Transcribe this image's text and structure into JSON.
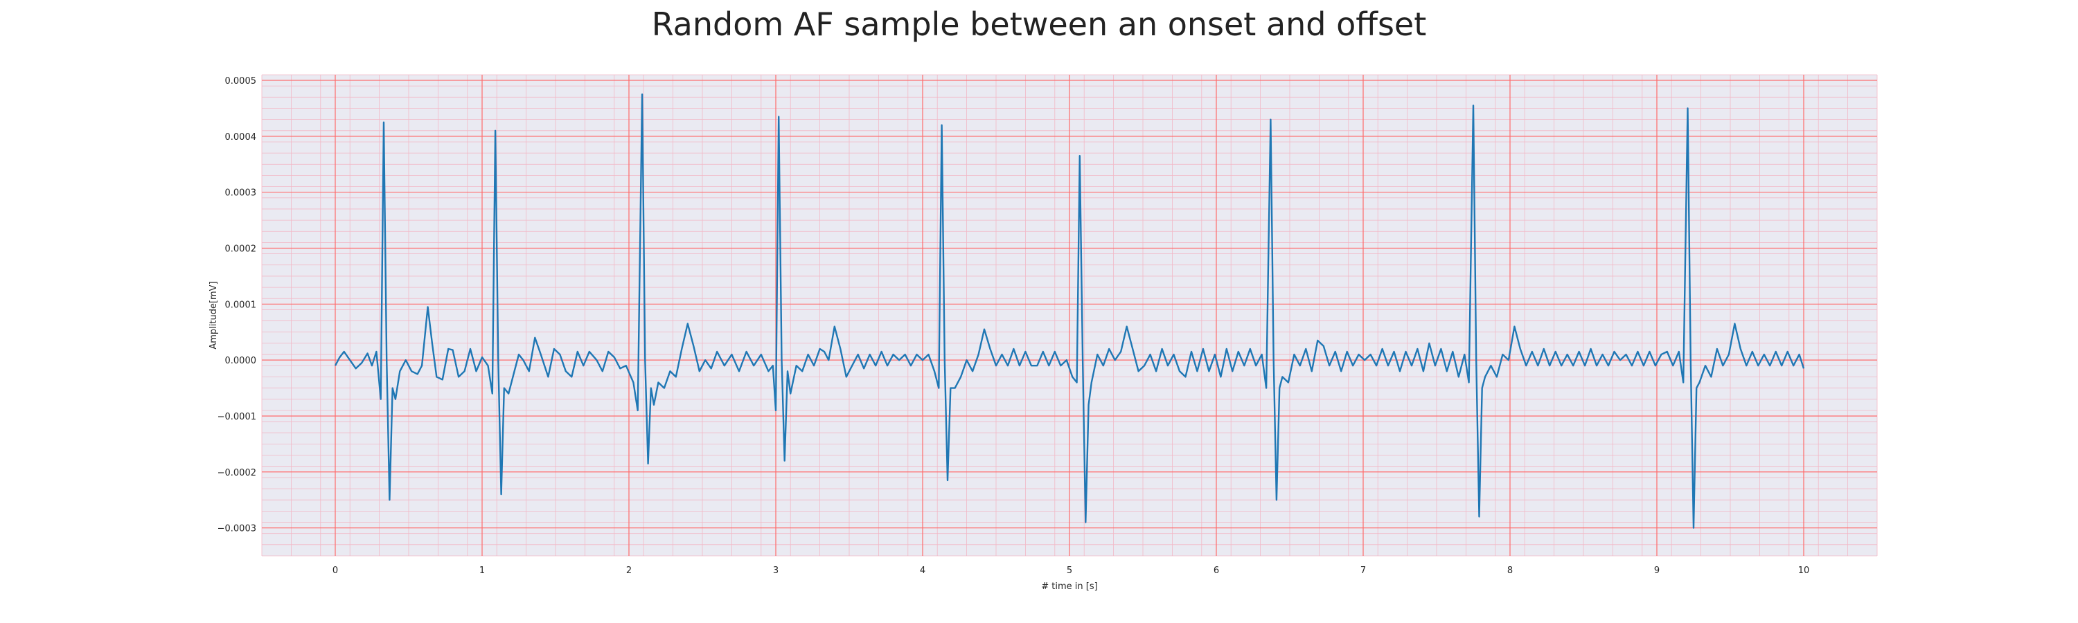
{
  "chart_data": {
    "type": "line",
    "title": "Random AF sample between an onset and offset",
    "xlabel": "# time in [s]",
    "ylabel": "Amplitude[mV]",
    "xlim": [
      -0.5,
      10.5
    ],
    "ylim": [
      -0.00035,
      0.00051
    ],
    "xticks": [
      0,
      1,
      2,
      3,
      4,
      5,
      6,
      7,
      8,
      9,
      10
    ],
    "xtick_labels": [
      "0",
      "1",
      "2",
      "3",
      "4",
      "5",
      "6",
      "7",
      "8",
      "9",
      "10"
    ],
    "yticks": [
      -0.0003,
      -0.0002,
      -0.0001,
      0.0,
      0.0001,
      0.0002,
      0.0003,
      0.0004,
      0.0005
    ],
    "ytick_labels": [
      "−0.0003",
      "−0.0002",
      "−0.0001",
      "0.0000",
      "0.0001",
      "0.0002",
      "0.0003",
      "0.0004",
      "0.0005"
    ],
    "grid": true,
    "grid_major_color": "#ff6b6b",
    "grid_minor_color": "#f2b8c6",
    "background_color": "#eaeaf2",
    "line_color": "#1f77b4",
    "series": [
      {
        "name": "",
        "points": [
          [
            0.0,
            -1e-05
          ],
          [
            0.03,
            5e-06
          ],
          [
            0.06,
            1.5e-05
          ],
          [
            0.1,
            0.0
          ],
          [
            0.14,
            -1.5e-05
          ],
          [
            0.18,
            -5e-06
          ],
          [
            0.22,
            1.2e-05
          ],
          [
            0.25,
            -1e-05
          ],
          [
            0.28,
            1.5e-05
          ],
          [
            0.31,
            -7e-05
          ],
          [
            0.33,
            0.000425
          ],
          [
            0.35,
            0.0
          ],
          [
            0.37,
            -0.00025
          ],
          [
            0.39,
            -5e-05
          ],
          [
            0.41,
            -7e-05
          ],
          [
            0.44,
            -2e-05
          ],
          [
            0.48,
            0.0
          ],
          [
            0.52,
            -2e-05
          ],
          [
            0.56,
            -2.5e-05
          ],
          [
            0.59,
            -1e-05
          ],
          [
            0.63,
            9.5e-05
          ],
          [
            0.66,
            3e-05
          ],
          [
            0.69,
            -3e-05
          ],
          [
            0.73,
            -3.5e-05
          ],
          [
            0.77,
            2e-05
          ],
          [
            0.8,
            1.8e-05
          ],
          [
            0.84,
            -3e-05
          ],
          [
            0.88,
            -2e-05
          ],
          [
            0.92,
            2e-05
          ],
          [
            0.96,
            -2e-05
          ],
          [
            1.0,
            5e-06
          ],
          [
            1.04,
            -1e-05
          ],
          [
            1.07,
            -6e-05
          ],
          [
            1.09,
            0.00041
          ],
          [
            1.11,
            0.0
          ],
          [
            1.13,
            -0.00024
          ],
          [
            1.15,
            -5e-05
          ],
          [
            1.18,
            -6e-05
          ],
          [
            1.22,
            -2e-05
          ],
          [
            1.25,
            1e-05
          ],
          [
            1.28,
            0.0
          ],
          [
            1.32,
            -2e-05
          ],
          [
            1.36,
            4e-05
          ],
          [
            1.4,
            1e-05
          ],
          [
            1.45,
            -3e-05
          ],
          [
            1.49,
            2e-05
          ],
          [
            1.53,
            1e-05
          ],
          [
            1.57,
            -2e-05
          ],
          [
            1.61,
            -3e-05
          ],
          [
            1.65,
            1.5e-05
          ],
          [
            1.69,
            -1e-05
          ],
          [
            1.73,
            1.5e-05
          ],
          [
            1.78,
            0.0
          ],
          [
            1.82,
            -2e-05
          ],
          [
            1.86,
            1.5e-05
          ],
          [
            1.9,
            5e-06
          ],
          [
            1.94,
            -1.5e-05
          ],
          [
            1.98,
            -1e-05
          ],
          [
            2.03,
            -4e-05
          ],
          [
            2.06,
            -9e-05
          ],
          [
            2.09,
            0.000475
          ],
          [
            2.11,
            0.0
          ],
          [
            2.13,
            -0.000185
          ],
          [
            2.15,
            -5e-05
          ],
          [
            2.17,
            -8e-05
          ],
          [
            2.2,
            -4e-05
          ],
          [
            2.24,
            -5e-05
          ],
          [
            2.28,
            -2e-05
          ],
          [
            2.32,
            -3e-05
          ],
          [
            2.36,
            2e-05
          ],
          [
            2.4,
            6.5e-05
          ],
          [
            2.44,
            2.5e-05
          ],
          [
            2.48,
            -2e-05
          ],
          [
            2.52,
            0.0
          ],
          [
            2.56,
            -1.5e-05
          ],
          [
            2.6,
            1.5e-05
          ],
          [
            2.65,
            -1e-05
          ],
          [
            2.7,
            1e-05
          ],
          [
            2.75,
            -2e-05
          ],
          [
            2.8,
            1.5e-05
          ],
          [
            2.85,
            -1e-05
          ],
          [
            2.9,
            1e-05
          ],
          [
            2.95,
            -2e-05
          ],
          [
            2.98,
            -1e-05
          ],
          [
            3.0,
            -9e-05
          ],
          [
            3.02,
            0.000435
          ],
          [
            3.04,
            0.0
          ],
          [
            3.06,
            -0.00018
          ],
          [
            3.08,
            -2e-05
          ],
          [
            3.1,
            -6e-05
          ],
          [
            3.14,
            -1e-05
          ],
          [
            3.18,
            -2e-05
          ],
          [
            3.22,
            1e-05
          ],
          [
            3.26,
            -1e-05
          ],
          [
            3.3,
            2e-05
          ],
          [
            3.33,
            1.5e-05
          ],
          [
            3.36,
            0.0
          ],
          [
            3.4,
            6e-05
          ],
          [
            3.44,
            2e-05
          ],
          [
            3.48,
            -3e-05
          ],
          [
            3.52,
            -1e-05
          ],
          [
            3.56,
            1e-05
          ],
          [
            3.6,
            -1.5e-05
          ],
          [
            3.64,
            1e-05
          ],
          [
            3.68,
            -1e-05
          ],
          [
            3.72,
            1.5e-05
          ],
          [
            3.76,
            -1e-05
          ],
          [
            3.8,
            1e-05
          ],
          [
            3.84,
            0.0
          ],
          [
            3.88,
            1e-05
          ],
          [
            3.92,
            -1e-05
          ],
          [
            3.96,
            1e-05
          ],
          [
            4.0,
            0.0
          ],
          [
            4.04,
            1e-05
          ],
          [
            4.08,
            -2e-05
          ],
          [
            4.11,
            -5e-05
          ],
          [
            4.13,
            0.00042
          ],
          [
            4.15,
            0.0
          ],
          [
            4.17,
            -0.000215
          ],
          [
            4.19,
            -5e-05
          ],
          [
            4.22,
            -5e-05
          ],
          [
            4.26,
            -3e-05
          ],
          [
            4.3,
            0.0
          ],
          [
            4.34,
            -2e-05
          ],
          [
            4.38,
            1e-05
          ],
          [
            4.42,
            5.5e-05
          ],
          [
            4.46,
            2e-05
          ],
          [
            4.5,
            -1e-05
          ],
          [
            4.54,
            1e-05
          ],
          [
            4.58,
            -1e-05
          ],
          [
            4.62,
            2e-05
          ],
          [
            4.66,
            -1e-05
          ],
          [
            4.7,
            1.5e-05
          ],
          [
            4.74,
            -1e-05
          ],
          [
            4.78,
            -1e-05
          ],
          [
            4.82,
            1.5e-05
          ],
          [
            4.86,
            -1e-05
          ],
          [
            4.9,
            1.5e-05
          ],
          [
            4.94,
            -1e-05
          ],
          [
            4.98,
            0.0
          ],
          [
            5.02,
            -3e-05
          ],
          [
            5.05,
            -4e-05
          ],
          [
            5.07,
            0.000365
          ],
          [
            5.09,
            0.0
          ],
          [
            5.11,
            -0.00029
          ],
          [
            5.13,
            -8e-05
          ],
          [
            5.15,
            -4e-05
          ],
          [
            5.19,
            1e-05
          ],
          [
            5.23,
            -1e-05
          ],
          [
            5.27,
            2e-05
          ],
          [
            5.31,
            0.0
          ],
          [
            5.35,
            1.5e-05
          ],
          [
            5.39,
            6e-05
          ],
          [
            5.43,
            2e-05
          ],
          [
            5.47,
            -2e-05
          ],
          [
            5.51,
            -1e-05
          ],
          [
            5.55,
            1e-05
          ],
          [
            5.59,
            -2e-05
          ],
          [
            5.63,
            2e-05
          ],
          [
            5.67,
            -1e-05
          ],
          [
            5.71,
            1e-05
          ],
          [
            5.75,
            -2e-05
          ],
          [
            5.79,
            -3e-05
          ],
          [
            5.83,
            1.5e-05
          ],
          [
            5.87,
            -2e-05
          ],
          [
            5.91,
            2e-05
          ],
          [
            5.95,
            -2e-05
          ],
          [
            5.99,
            1e-05
          ],
          [
            6.03,
            -3e-05
          ],
          [
            6.07,
            2e-05
          ],
          [
            6.11,
            -2e-05
          ],
          [
            6.15,
            1.5e-05
          ],
          [
            6.19,
            -1e-05
          ],
          [
            6.23,
            2e-05
          ],
          [
            6.27,
            -1e-05
          ],
          [
            6.31,
            1e-05
          ],
          [
            6.34,
            -5e-05
          ],
          [
            6.37,
            0.00043
          ],
          [
            6.39,
            0.0
          ],
          [
            6.41,
            -0.00025
          ],
          [
            6.43,
            -5e-05
          ],
          [
            6.45,
            -3e-05
          ],
          [
            6.49,
            -4e-05
          ],
          [
            6.53,
            1e-05
          ],
          [
            6.57,
            -1e-05
          ],
          [
            6.61,
            2e-05
          ],
          [
            6.65,
            -2e-05
          ],
          [
            6.69,
            3.5e-05
          ],
          [
            6.73,
            2.5e-05
          ],
          [
            6.77,
            -1e-05
          ],
          [
            6.81,
            1.5e-05
          ],
          [
            6.85,
            -2e-05
          ],
          [
            6.89,
            1.5e-05
          ],
          [
            6.93,
            -1e-05
          ],
          [
            6.97,
            1e-05
          ],
          [
            7.01,
            0.0
          ],
          [
            7.05,
            1e-05
          ],
          [
            7.09,
            -1e-05
          ],
          [
            7.13,
            2e-05
          ],
          [
            7.17,
            -1e-05
          ],
          [
            7.21,
            1.5e-05
          ],
          [
            7.25,
            -2e-05
          ],
          [
            7.29,
            1.5e-05
          ],
          [
            7.33,
            -1e-05
          ],
          [
            7.37,
            2e-05
          ],
          [
            7.41,
            -2e-05
          ],
          [
            7.45,
            3e-05
          ],
          [
            7.49,
            -1e-05
          ],
          [
            7.53,
            2e-05
          ],
          [
            7.57,
            -2e-05
          ],
          [
            7.61,
            1.5e-05
          ],
          [
            7.65,
            -3e-05
          ],
          [
            7.69,
            1e-05
          ],
          [
            7.72,
            -4e-05
          ],
          [
            7.75,
            0.000455
          ],
          [
            7.77,
            0.0
          ],
          [
            7.79,
            -0.00028
          ],
          [
            7.81,
            -5e-05
          ],
          [
            7.83,
            -3e-05
          ],
          [
            7.87,
            -1e-05
          ],
          [
            7.91,
            -3e-05
          ],
          [
            7.95,
            1e-05
          ],
          [
            7.99,
            0.0
          ],
          [
            8.03,
            6e-05
          ],
          [
            8.07,
            2e-05
          ],
          [
            8.11,
            -1e-05
          ],
          [
            8.15,
            1.5e-05
          ],
          [
            8.19,
            -1e-05
          ],
          [
            8.23,
            2e-05
          ],
          [
            8.27,
            -1e-05
          ],
          [
            8.31,
            1.5e-05
          ],
          [
            8.35,
            -1e-05
          ],
          [
            8.39,
            1e-05
          ],
          [
            8.43,
            -1e-05
          ],
          [
            8.47,
            1.5e-05
          ],
          [
            8.51,
            -1e-05
          ],
          [
            8.55,
            2e-05
          ],
          [
            8.59,
            -1e-05
          ],
          [
            8.63,
            1e-05
          ],
          [
            8.67,
            -1e-05
          ],
          [
            8.71,
            1.5e-05
          ],
          [
            8.75,
            0.0
          ],
          [
            8.79,
            1e-05
          ],
          [
            8.83,
            -1e-05
          ],
          [
            8.87,
            1.5e-05
          ],
          [
            8.91,
            -1e-05
          ],
          [
            8.95,
            1.5e-05
          ],
          [
            8.99,
            -1e-05
          ],
          [
            9.03,
            1e-05
          ],
          [
            9.07,
            1.5e-05
          ],
          [
            9.11,
            -1e-05
          ],
          [
            9.15,
            1.5e-05
          ],
          [
            9.18,
            -4e-05
          ],
          [
            9.21,
            0.00045
          ],
          [
            9.23,
            0.0
          ],
          [
            9.25,
            -0.0003
          ],
          [
            9.27,
            -5e-05
          ],
          [
            9.29,
            -4e-05
          ],
          [
            9.33,
            -1e-05
          ],
          [
            9.37,
            -3e-05
          ],
          [
            9.41,
            2e-05
          ],
          [
            9.45,
            -1e-05
          ],
          [
            9.49,
            1e-05
          ],
          [
            9.53,
            6.5e-05
          ],
          [
            9.57,
            2e-05
          ],
          [
            9.61,
            -1e-05
          ],
          [
            9.65,
            1.5e-05
          ],
          [
            9.69,
            -1e-05
          ],
          [
            9.73,
            1e-05
          ],
          [
            9.77,
            -1e-05
          ],
          [
            9.81,
            1.5e-05
          ],
          [
            9.85,
            -1e-05
          ],
          [
            9.89,
            1.5e-05
          ],
          [
            9.93,
            -1e-05
          ],
          [
            9.97,
            1e-05
          ],
          [
            10.0,
            -1.5e-05
          ]
        ]
      }
    ]
  }
}
